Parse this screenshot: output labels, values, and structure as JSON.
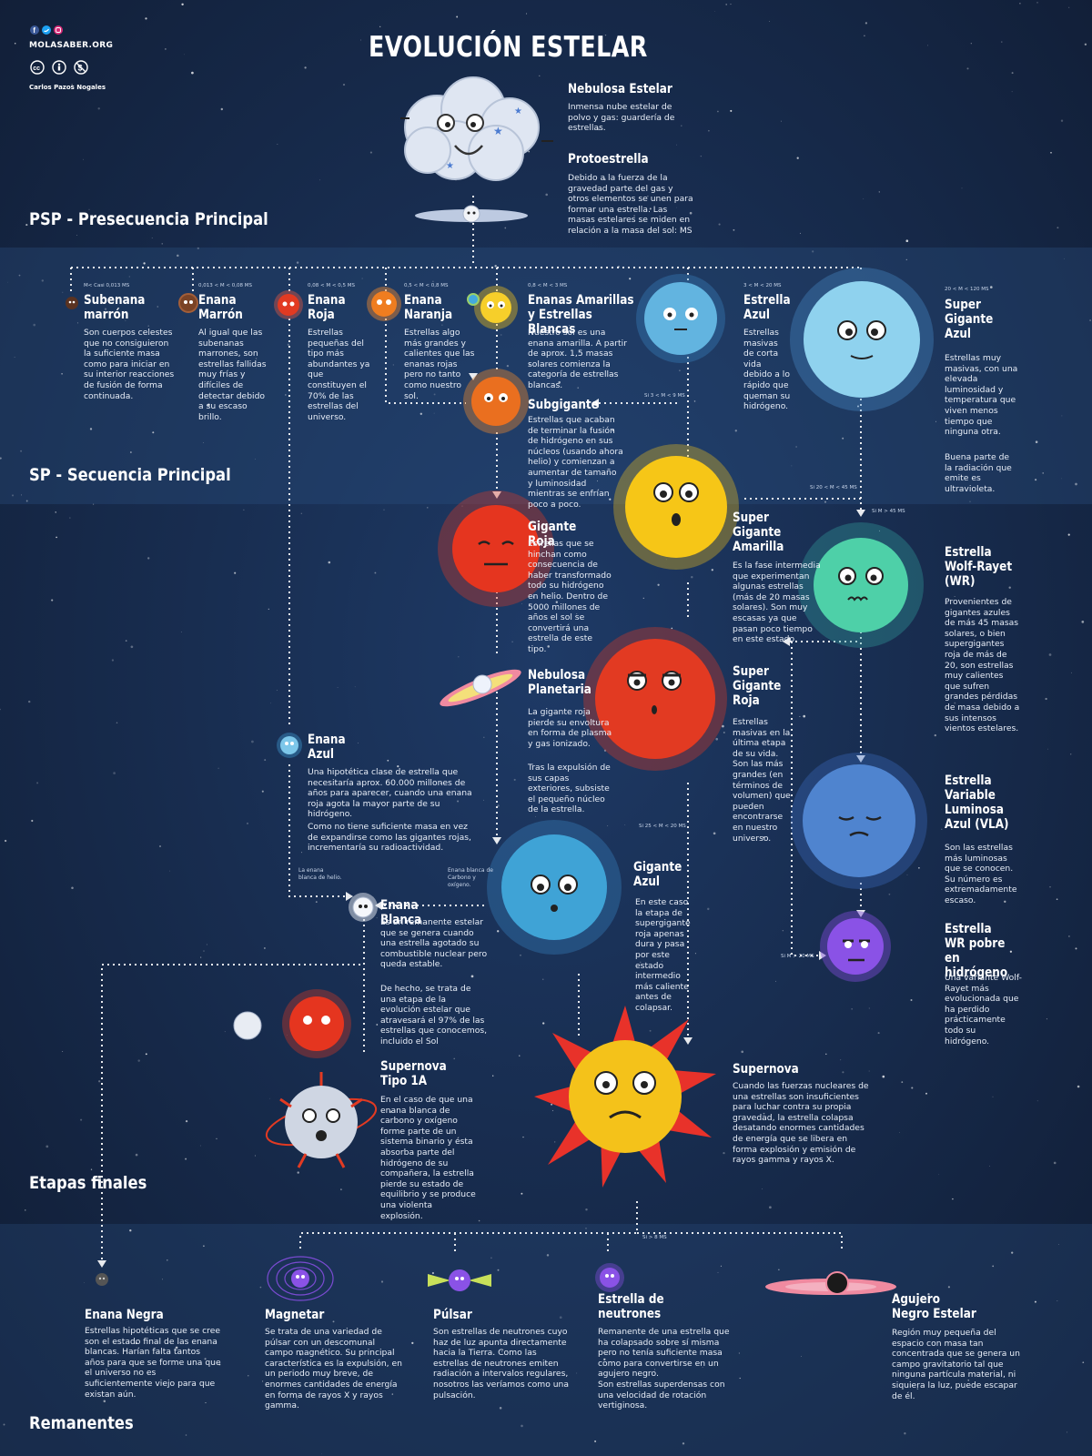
{
  "brand": {
    "site": "MOLASABER.ORG",
    "author": "Carlos Pazos Nogales",
    "social_icons": [
      "facebook-icon",
      "twitter-icon",
      "instagram-icon"
    ],
    "license_icons": [
      "cc-icon",
      "by-icon",
      "nc-icon"
    ]
  },
  "title": "EVOLUCIÓN ESTELAR",
  "sections": {
    "psp": "PSP - Presecuencia Principal",
    "sp": "SP - Secuencia Principal",
    "finals": "Etapas finales",
    "remnants": "Remanentes"
  },
  "colors": {
    "background": "#15233f",
    "band": "#1d3358",
    "dots": "#ffffff",
    "accent_red": "#e23a22",
    "accent_yellow": "#f4c21a",
    "accent_blue": "#3f9cd2"
  },
  "stages": {
    "nebulosa": {
      "name": "Nebulosa Estelar",
      "desc": "Inmensa nube estelar de polvo y gas: guardería de estrellas."
    },
    "protoestrella": {
      "name": "Protoestrella",
      "desc": "Debido a la fuerza de la gravedad parte del gas y otros elementos se unen para formar una estrella. Las masas estelares se miden en relación a la masa del sol: MS"
    },
    "subenana": {
      "name": "Subenana marrón",
      "mass": "M< Casi 0,013 MS",
      "desc": "Son cuerpos celestes que no consiguieron la suficiente masa como para iniciar en su interior reacciones de fusión de forma continuada."
    },
    "enana_marron": {
      "name": "Enana Marrón",
      "mass": "0,013 < M < 0,08 MS",
      "desc": "Al igual que las subenanas marrones, son estrellas fallidas muy frías y difíciles de detectar debido a su escaso brillo."
    },
    "enana_roja": {
      "name": "Enana Roja",
      "mass": "0,08 < M < 0,5 MS",
      "desc": "Estrellas pequeñas del tipo más abundantes ya que constituyen el 70% de las estrellas del universo."
    },
    "enana_naranja": {
      "name": "Enana Naranja",
      "mass": "0,5 < M < 0,8 MS",
      "desc": "Estrellas algo más grandes y calientes que las enanas rojas pero no tanto como nuestro sol."
    },
    "enanas_amarillas": {
      "name": "Enanas Amarillas y Estrellas Blancas",
      "mass": "0,8 < M < 3 MS",
      "desc": "Nuestro sol es una enana amarilla. A partir de aprox. 1,5 masas solares comienza la categoría de estrellas blancas."
    },
    "estrella_azul": {
      "name": "Estrella Azul",
      "mass": "3 < M < 20 MS",
      "desc": "Estrellas masivas de corta vida debido a lo rápido que queman su hidrógeno."
    },
    "super_gigante_azul": {
      "name": "Super Gigante Azul",
      "mass": "20 < M < 120 MS",
      "desc": "Estrellas muy masivas, con una elevada luminosidad y temperatura que viven menos tiempo que ninguna otra.",
      "desc2": "Buena parte de la radiación que emite es ultravioleta."
    },
    "subgigante": {
      "name": "Subgigante",
      "desc": "Estrellas que acaban de terminar la fusión de hidrógeno en sus núcleos (usando ahora helio) y comienzan a aumentar de tamaño y luminosidad mientras se enfrían poco a poco."
    },
    "gigante_roja": {
      "name": "Gigante Roja",
      "desc": "Estrellas que se hinchan como consecuencia de haber transformado todo su hidrógeno en helio. Dentro de 5000 millones de años el sol se convertirá una estrella de este tipo."
    },
    "super_gigante_amarilla": {
      "name": "Super Gigante Amarilla",
      "desc": "Es la fase intermedia que experimentan algunas estrellas (más de 20 masas solares). Son muy escasas ya que pasan poco tiempo en este estado."
    },
    "wolf_rayet": {
      "name": "Estrella Wolf-Rayet (WR)",
      "desc": "Provenientes de gigantes azules de más 45 masas solares, o bien supergigantes roja de más de 20, son estrellas muy calientes que sufren grandes pérdidas de masa debido a sus intensos vientos estelares."
    },
    "nebulosa_planetaria": {
      "name": "Nebulosa Planetaria",
      "desc": "La gigante roja pierde su envoltura en forma de plasma y gas ionizado.",
      "desc2": "Tras la expulsión de sus capas exteriores, subsiste el pequeño núcleo de la estrella."
    },
    "super_gigante_roja": {
      "name": "Super Gigante Roja",
      "desc": "Estrellas masivas en la última etapa de su vida. Son las más grandes (en términos de volumen) que pueden encontrarse en nuestro universo."
    },
    "enana_azul": {
      "name": "Enana Azul",
      "desc": "Una hipotética clase de estrella que necesitaría aprox. 60.000 millones de años para aparecer, cuando una enana roja agota la mayor parte de su hidrógeno.",
      "desc2": "Como no tiene suficiente masa en vez de expandirse como las gigantes rojas, incrementaría su radioactividad."
    },
    "vla": {
      "name": "Estrella Variable Luminosa Azul (VLA)",
      "desc": "Son las estrellas más luminosas que se conocen. Su número es extremadamente escaso."
    },
    "gigante_azul": {
      "name": "Gigante Azul",
      "desc": "En este caso la etapa de supergigante roja apenas dura y pasa por este estado intermedio más caliente antes de colapsar."
    },
    "enana_blanca": {
      "name": "Enana Blanca",
      "desc": "Es un remanente estelar que se genera cuando una estrella agotado su combustible nuclear pero queda estable.",
      "desc2": "De hecho, se trata de una etapa de la evolución estelar que atravesará el 97% de las estrellas que conocemos, incluido el Sol"
    },
    "wr_pobre": {
      "name": "Estrella WR pobre en hidrógeno",
      "desc": "Una variante Wolf-Rayet más evolucionada que ha perdido prácticamente todo su hidrógeno."
    },
    "supernova_1a": {
      "name": "Supernova Tipo 1A",
      "desc": "En el caso de que una enana blanca de carbono y oxígeno forme parte de un sistema binario y ésta absorba parte del hidrógeno de su compañera, la estrella pierde su estado de equilibrio y se produce una violenta explosión."
    },
    "supernova": {
      "name": "Supernova",
      "desc": "Cuando las fuerzas nucleares de una estrellas son insuficientes para luchar contra su propia gravedad, la estrella colapsa desatando enormes cantidades de energía que se libera en forma explosión y emisión de rayos gamma y rayos X."
    }
  },
  "remnants": {
    "enana_negra": {
      "name": "Enana Negra",
      "desc": "Estrellas hipotéticas que se cree son el estado final de las enana blancas. Harían falta tantos años para que se forme una que el universo no es suficientemente viejo para que existan aún."
    },
    "magnetar": {
      "name": "Magnetar",
      "desc": "Se trata de una variedad de púlsar con un descomunal campo magnético. Su principal característica es la expulsión, en un periodo muy breve, de enormes cantidades de energía en forma de rayos X y rayos gamma."
    },
    "pulsar": {
      "name": "Púlsar",
      "desc": "Son estrellas de neutrones cuyo haz de luz apunta directamente hacia la Tierra. Como las estrellas de neutrones emiten radiación a intervalos regulares, nosotros las veríamos como una pulsación."
    },
    "neutrones": {
      "name": "Estrella de neutrones",
      "desc": "Remanente de una estrella que ha colapsado sobre sí misma pero no tenía suficiente masa como para convertirse en un agujero negro.",
      "desc2": "Son estrellas superdensas con una velocidad de rotación vertiginosa."
    },
    "agujero": {
      "name": "Agujero Negro Estelar",
      "desc": "Región muy pequeña del espacio con masa tan concentrada que se genera un campo gravitatorio tal que ninguna partícula material, ni siquiera la luz, puede escapar de él."
    }
  },
  "conditions": {
    "c1": "Si 3 < M < 9 MS",
    "c2": "Si 20 < M < 45 MS",
    "c3": "Si M > 45 MS",
    "c4": "Si 25 < M < 20 MS",
    "c5": "Si M > 20 MS",
    "c6": "Si > 8 MS"
  },
  "notes": {
    "helio": "La enana blanca de helio.",
    "carbono": "Enana blanca de Carbono y oxígeno."
  }
}
